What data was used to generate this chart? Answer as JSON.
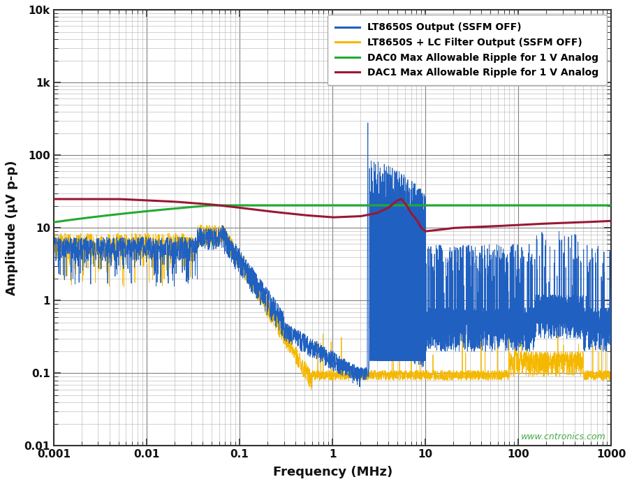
{
  "xlabel": "Frequency (MHz)",
  "ylabel": "Amplitude (μV p-p)",
  "xlim": [
    0.001,
    1000
  ],
  "ylim": [
    0.01,
    10000
  ],
  "background_color": "#ffffff",
  "grid_major_color": "#808080",
  "grid_minor_color": "#b0b0b0",
  "legend_labels": [
    "LT8650S Output (SSFM OFF)",
    "LT8650S + LC Filter Output (SSFM OFF)",
    "DAC0 Max Allowable Ripple for 1 V Analog",
    "DAC1 Max Allowable Ripple for 1 V Analog"
  ],
  "line_colors": [
    "#2060c0",
    "#f5b800",
    "#22aa33",
    "#991833"
  ],
  "watermark": "www.cntronics.com",
  "watermark_color": "#44aa44",
  "ytick_labels": [
    "0.01",
    "0.1",
    "1",
    "10",
    "100",
    "1k",
    "10k"
  ],
  "ytick_vals": [
    0.01,
    0.1,
    1,
    10,
    100,
    1000,
    10000
  ],
  "xtick_labels": [
    "0.001",
    "0.01",
    "0.1",
    "1",
    "10",
    "100",
    "1000"
  ],
  "xtick_vals": [
    0.001,
    0.01,
    0.1,
    1,
    10,
    100,
    1000
  ]
}
